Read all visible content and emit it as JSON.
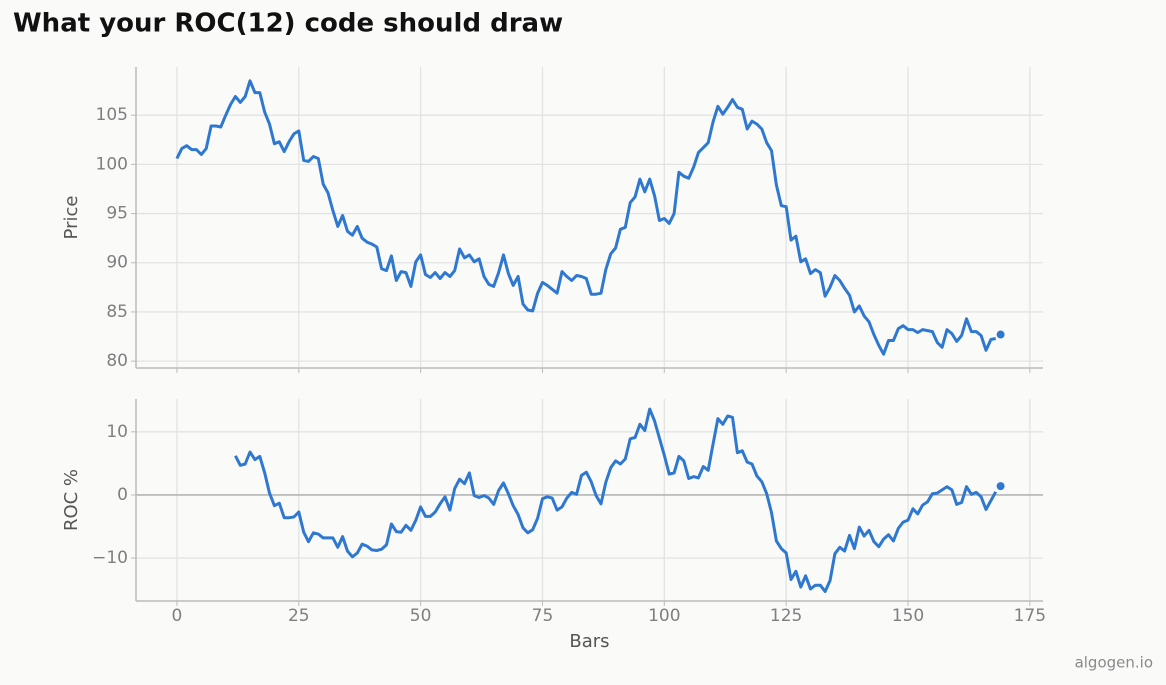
{
  "title": "What your ROC(12) code should draw",
  "watermark": "algogen.io",
  "chart_data": [
    {
      "type": "line",
      "y_label": "Price",
      "color": "#2f78d0",
      "grid": true,
      "xtick_labels": false,
      "xlim": [
        -8.4,
        177.7
      ],
      "xticks": [
        0,
        25,
        50,
        75,
        100,
        125,
        150,
        175
      ],
      "ylim": [
        79.3,
        109.9
      ],
      "yticks": [
        80,
        85,
        90,
        95,
        100,
        105
      ],
      "x": [
        0,
        1,
        2,
        3,
        4,
        5,
        6,
        7,
        8,
        9,
        10,
        11,
        12,
        13,
        14,
        15,
        16,
        17,
        18,
        19,
        20,
        21,
        22,
        23,
        24,
        25,
        26,
        27,
        28,
        29,
        30,
        31,
        32,
        33,
        34,
        35,
        36,
        37,
        38,
        39,
        40,
        41,
        42,
        43,
        44,
        45,
        46,
        47,
        48,
        49,
        50,
        51,
        52,
        53,
        54,
        55,
        56,
        57,
        58,
        59,
        60,
        61,
        62,
        63,
        64,
        65,
        66,
        67,
        68,
        69,
        70,
        71,
        72,
        73,
        74,
        75,
        76,
        77,
        78,
        79,
        80,
        81,
        82,
        83,
        84,
        85,
        86,
        87,
        88,
        89,
        90,
        91,
        92,
        93,
        94,
        95,
        96,
        97,
        98,
        99,
        100,
        101,
        102,
        103,
        104,
        105,
        106,
        107,
        108,
        109,
        110,
        111,
        112,
        113,
        114,
        115,
        116,
        117,
        118,
        119,
        120,
        121,
        122,
        123,
        124,
        125,
        126,
        127,
        128,
        129,
        130,
        131,
        132,
        133,
        134,
        135,
        136,
        137,
        138,
        139,
        140,
        141,
        142,
        143,
        144,
        145,
        146,
        147,
        148,
        149,
        150,
        151,
        152,
        153,
        154,
        155,
        156,
        157,
        158,
        159,
        160,
        161,
        162,
        163,
        164,
        165,
        166,
        167,
        168
      ],
      "values": [
        100.6,
        101.6,
        101.9,
        101.5,
        101.5,
        101.0,
        101.6,
        103.9,
        103.9,
        103.8,
        105.0,
        106.1,
        106.9,
        106.3,
        106.9,
        108.5,
        107.3,
        107.3,
        105.3,
        104.1,
        102.1,
        102.3,
        101.3,
        102.3,
        103.1,
        103.4,
        100.4,
        100.3,
        100.8,
        100.6,
        98.0,
        97.1,
        95.3,
        93.7,
        94.8,
        93.2,
        92.8,
        93.7,
        92.5,
        92.1,
        91.9,
        91.6,
        89.4,
        89.2,
        90.7,
        88.2,
        89.1,
        89.0,
        87.6,
        90.1,
        90.8,
        88.8,
        88.5,
        89.0,
        88.4,
        89.0,
        88.6,
        89.2,
        91.4,
        90.5,
        90.8,
        90.1,
        90.4,
        88.6,
        87.8,
        87.6,
        89.0,
        90.8,
        88.9,
        87.7,
        88.6,
        85.8,
        85.2,
        85.1,
        86.9,
        88.0,
        87.7,
        87.3,
        86.9,
        89.1,
        88.6,
        88.2,
        88.7,
        88.6,
        88.4,
        86.8,
        86.8,
        86.9,
        89.3,
        90.9,
        91.5,
        93.4,
        93.6,
        96.1,
        96.7,
        98.5,
        97.2,
        98.5,
        96.8,
        94.3,
        94.5,
        94.0,
        95.0,
        99.2,
        98.8,
        98.6,
        99.7,
        101.2,
        101.7,
        102.2,
        104.3,
        105.9,
        105.1,
        105.8,
        106.6,
        105.8,
        105.6,
        103.6,
        104.4,
        104.1,
        103.6,
        102.2,
        101.4,
        97.9,
        95.8,
        95.7,
        92.3,
        92.7,
        90.1,
        90.4,
        88.9,
        89.3,
        89.0,
        86.6,
        87.5,
        88.7,
        88.2,
        87.4,
        86.7,
        85.0,
        85.6,
        84.6,
        84.0,
        82.7,
        81.6,
        80.7,
        82.1,
        82.1,
        83.3,
        83.6,
        83.2,
        83.2,
        82.9,
        83.2,
        83.1,
        83.0,
        81.9,
        81.4,
        83.2,
        82.8,
        82.0,
        82.6,
        84.3,
        83.0,
        83.0,
        82.6,
        81.1,
        82.2,
        82.3
      ],
      "last_point": {
        "x": 169,
        "value": 82.7
      }
    },
    {
      "type": "line",
      "y_label": "ROC %",
      "x_label": "Bars",
      "color": "#2f78d0",
      "grid": true,
      "xtick_labels": true,
      "zero_line": true,
      "xlim": [
        -8.4,
        177.7
      ],
      "xticks": [
        0,
        25,
        50,
        75,
        100,
        125,
        150,
        175
      ],
      "ylim": [
        -16.8,
        15.2
      ],
      "yticks": [
        {
          "value": -10,
          "label": "−10"
        },
        0,
        10
      ],
      "x": [
        0,
        1,
        2,
        3,
        4,
        5,
        6,
        7,
        8,
        9,
        10,
        11,
        12,
        13,
        14,
        15,
        16,
        17,
        18,
        19,
        20,
        21,
        22,
        23,
        24,
        25,
        26,
        27,
        28,
        29,
        30,
        31,
        32,
        33,
        34,
        35,
        36,
        37,
        38,
        39,
        40,
        41,
        42,
        43,
        44,
        45,
        46,
        47,
        48,
        49,
        50,
        51,
        52,
        53,
        54,
        55,
        56,
        57,
        58,
        59,
        60,
        61,
        62,
        63,
        64,
        65,
        66,
        67,
        68,
        69,
        70,
        71,
        72,
        73,
        74,
        75,
        76,
        77,
        78,
        79,
        80,
        81,
        82,
        83,
        84,
        85,
        86,
        87,
        88,
        89,
        90,
        91,
        92,
        93,
        94,
        95,
        96,
        97,
        98,
        99,
        100,
        101,
        102,
        103,
        104,
        105,
        106,
        107,
        108,
        109,
        110,
        111,
        112,
        113,
        114,
        115,
        116,
        117,
        118,
        119,
        120,
        121,
        122,
        123,
        124,
        125,
        126,
        127,
        128,
        129,
        130,
        131,
        132,
        133,
        134,
        135,
        136,
        137,
        138,
        139,
        140,
        141,
        142,
        143,
        144,
        145,
        146,
        147,
        148,
        149,
        150,
        151,
        152,
        153,
        154,
        155,
        156,
        157,
        158,
        159,
        160,
        161,
        162,
        163,
        164,
        165,
        166,
        167,
        168
      ],
      "values": [
        null,
        null,
        null,
        null,
        null,
        null,
        null,
        null,
        null,
        null,
        null,
        null,
        6.2,
        4.7,
        4.9,
        6.8,
        5.6,
        6.1,
        3.5,
        0.3,
        -1.7,
        -1.3,
        -3.6,
        -3.6,
        -3.5,
        -2.7,
        -5.9,
        -7.4,
        -6.0,
        -6.2,
        -6.8,
        -6.8,
        -6.8,
        -8.3,
        -6.6,
        -8.9,
        -9.8,
        -9.2,
        -7.8,
        -8.1,
        -8.7,
        -8.8,
        -8.6,
        -7.9,
        -4.6,
        -5.8,
        -5.9,
        -4.8,
        -5.6,
        -4.0,
        -1.9,
        -3.4,
        -3.4,
        -2.7,
        -1.4,
        -0.3,
        -2.4,
        1.0,
        2.5,
        1.8,
        3.5,
        -0.1,
        -0.4,
        -0.1,
        -0.5,
        -1.5,
        0.7,
        1.9,
        0.2,
        -1.7,
        -3.1,
        -5.2,
        -6.0,
        -5.5,
        -3.7,
        -0.6,
        -0.3,
        -0.5,
        -2.4,
        -1.9,
        -0.5,
        0.4,
        0.1,
        3.1,
        3.6,
        2.1,
        -0.1,
        -1.4,
        2.0,
        4.3,
        5.4,
        4.9,
        5.7,
        8.9,
        9.1,
        11.2,
        10.2,
        13.6,
        11.7,
        9.0,
        6.3,
        3.3,
        3.5,
        6.1,
        5.4,
        2.6,
        2.9,
        2.7,
        4.5,
        3.9,
        8.0,
        12.1,
        11.2,
        12.5,
        12.3,
        6.7,
        7.0,
        5.2,
        4.9,
        3.0,
        2.1,
        0.2,
        -2.8,
        -7.3,
        -8.5,
        -9.2,
        -13.4,
        -12.1,
        -14.6,
        -12.8,
        -14.9,
        -14.3,
        -14.3,
        -15.3,
        -13.6,
        -9.3,
        -8.3,
        -8.9,
        -6.4,
        -8.5,
        -5.1,
        -6.5,
        -5.6,
        -7.4,
        -8.2,
        -7.0,
        -6.3,
        -7.3,
        -5.3,
        -4.3,
        -4.0,
        -2.2,
        -3.0,
        -1.6,
        -1.1,
        0.2,
        0.3,
        0.8,
        1.3,
        0.8,
        -1.5,
        -1.2,
        1.3,
        0.1,
        0.4,
        -0.3,
        -2.3,
        -0.9,
        0.5
      ],
      "last_point": {
        "x": 169,
        "value": 1.4
      }
    }
  ]
}
